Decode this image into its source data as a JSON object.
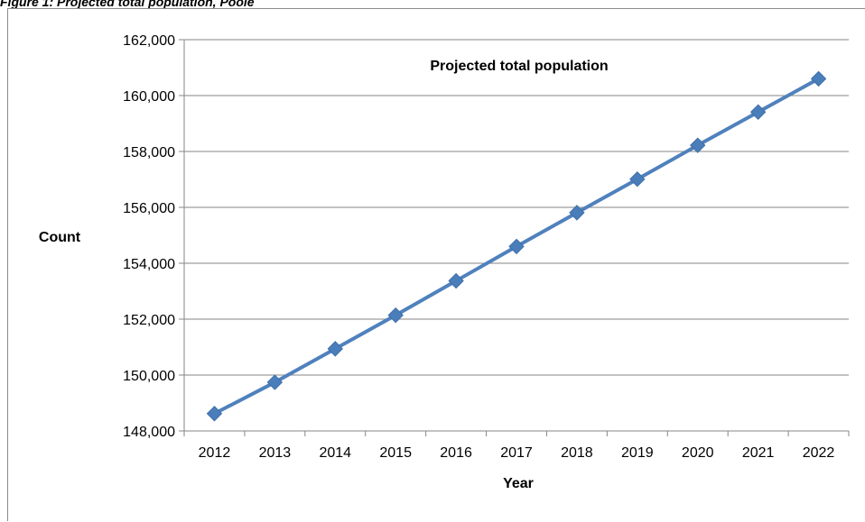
{
  "caption": "Figure 1: Projected total population, Poole",
  "chart_data": {
    "type": "line",
    "title": "Projected total population",
    "xlabel": "Year",
    "ylabel": "Count",
    "categories": [
      "2012",
      "2013",
      "2014",
      "2015",
      "2016",
      "2017",
      "2018",
      "2019",
      "2020",
      "2021",
      "2022"
    ],
    "series": [
      {
        "values": [
          148620,
          149740,
          150940,
          152140,
          153370,
          154600,
          155810,
          157010,
          158220,
          159410,
          160600
        ]
      }
    ],
    "ylim": [
      148000,
      162000
    ],
    "yticks": [
      "148,000",
      "150,000",
      "152,000",
      "154,000",
      "156,000",
      "158,000",
      "160,000",
      "162,000"
    ],
    "grid": "horizontal",
    "colors": {
      "line": "#4f81bd",
      "marker": "#4a7ebb",
      "grid": "#868686"
    }
  }
}
